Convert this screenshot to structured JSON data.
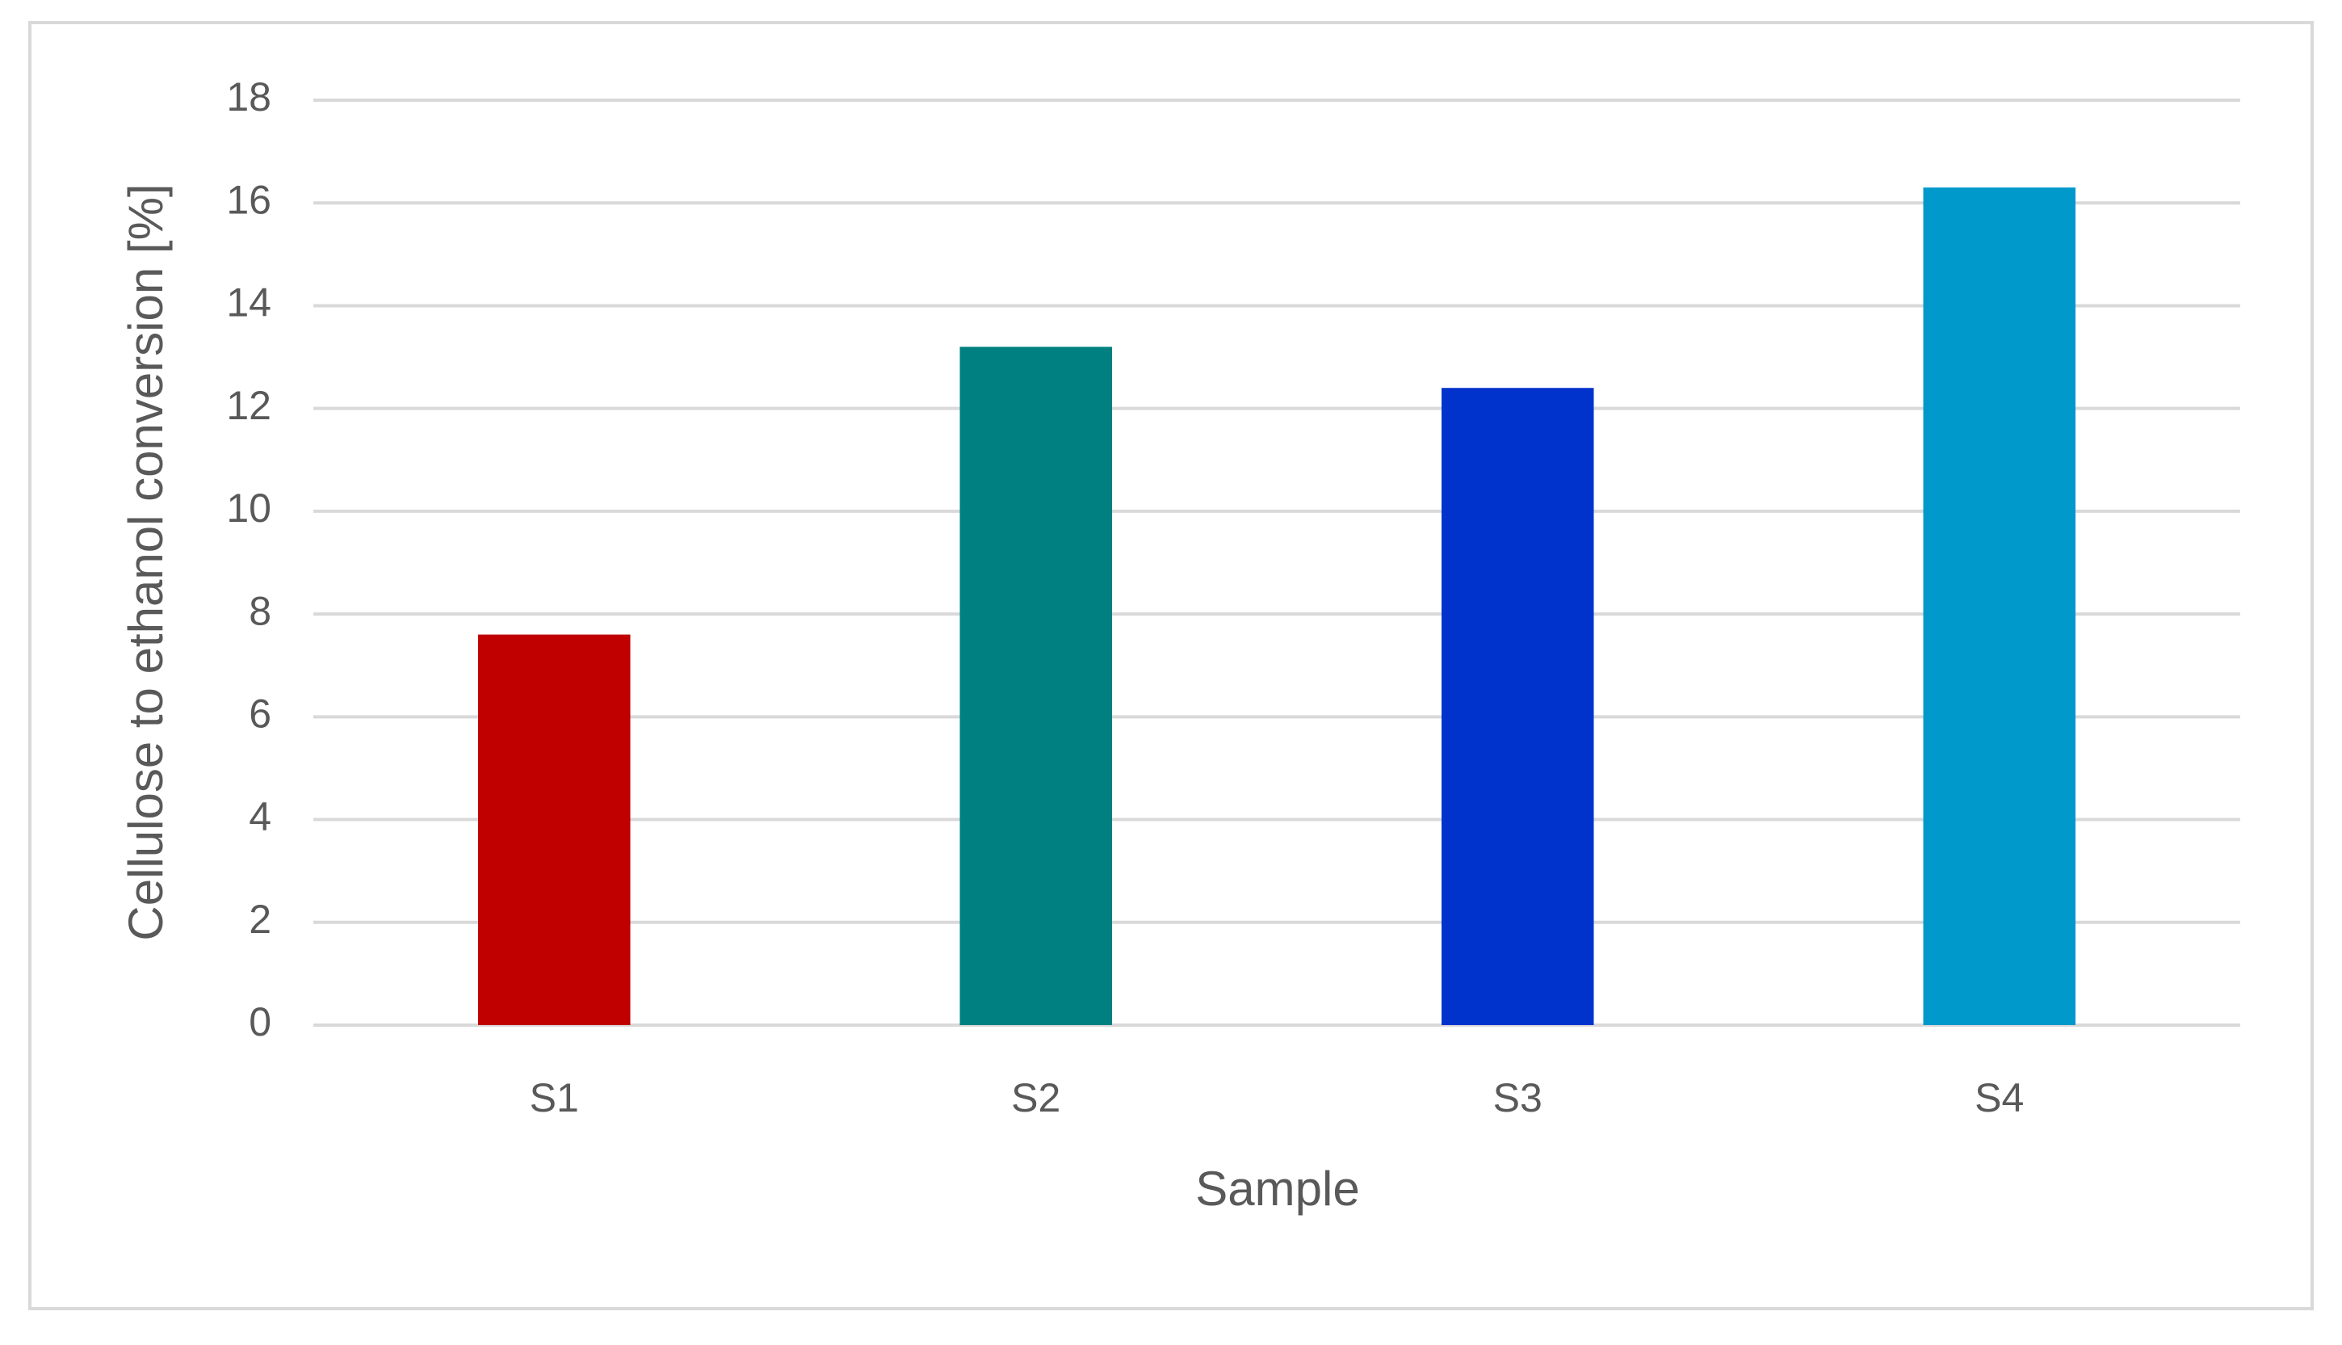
{
  "chart_data": {
    "type": "bar",
    "x_label": "Sample",
    "y_label": "Cellulose to ethanol conversion [%]",
    "categories": [
      "S1",
      "S2",
      "S3",
      "S4"
    ],
    "values": [
      7.6,
      13.2,
      12.4,
      16.3
    ],
    "colors": [
      "#c00000",
      "#008080",
      "#0033cc",
      "#0099cc"
    ],
    "ylim": [
      0,
      18
    ],
    "yticks": [
      0,
      2,
      4,
      6,
      8,
      10,
      12,
      14,
      16,
      18
    ],
    "grid": true
  }
}
